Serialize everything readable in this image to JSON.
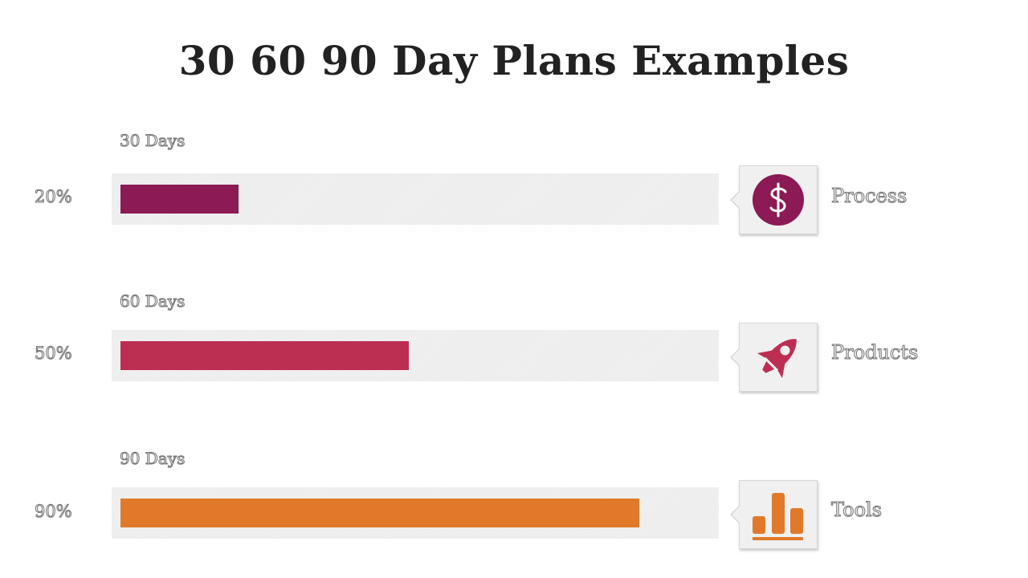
{
  "title": "30 60 90 Day Plans Examples",
  "rows": [
    {
      "days": "30 Days",
      "percent_label": "20%",
      "progress": 0.2,
      "color": "#8b1a55",
      "category": "Process",
      "icon": "dollar-circle-icon"
    },
    {
      "days": "60 Days",
      "percent_label": "50%",
      "progress": 0.5,
      "color": "#bc2e52",
      "category": "Products",
      "icon": "rocket-icon"
    },
    {
      "days": "90 Days",
      "percent_label": "90%",
      "progress": 0.9,
      "color": "#e07a2a",
      "category": "Tools",
      "icon": "bar-chart-icon"
    }
  ]
}
